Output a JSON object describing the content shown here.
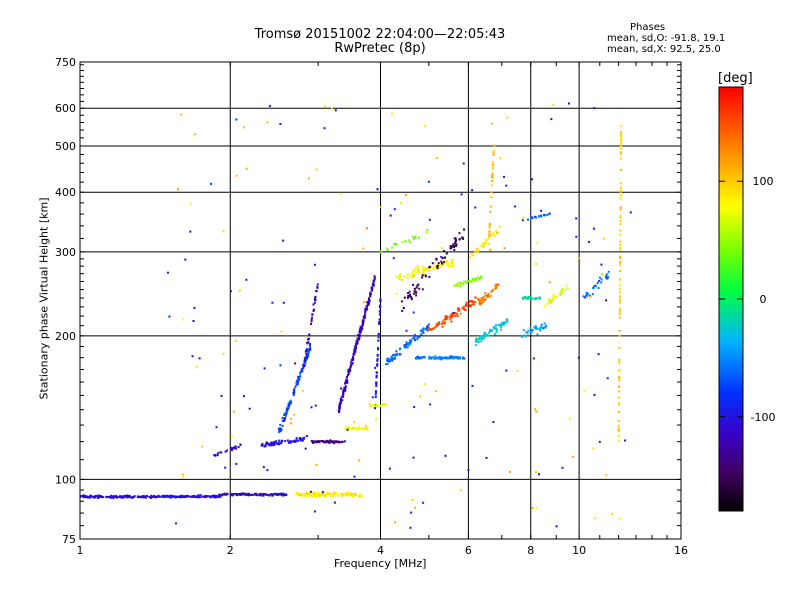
{
  "header": {
    "title_line1": "Tromsø 20151002 22:04:00—22:05:43",
    "title_line2": "RwPretec (8p)"
  },
  "phases_box": {
    "heading": "Phases",
    "line_o": "mean, sd,O: -91.8, 19.1",
    "line_x": "mean, sd,X:  92.5, 25.0"
  },
  "colors": {
    "grid": "#000000",
    "frame": "#000000"
  },
  "chart_data": {
    "type": "scatter",
    "title": "Tromsø 20151002 22:04:00—22:05:43",
    "subtitle": "RwPretec (8p)",
    "xlabel": "Frequency [MHz]",
    "ylabel": "Stationary phase Virtual Height [km]",
    "x_scale": "log",
    "y_scale": "log",
    "xlim": [
      1,
      16
    ],
    "ylim": [
      75,
      750
    ],
    "x_ticks": [
      1,
      2,
      4,
      6,
      8,
      10,
      16
    ],
    "x_grid": [
      2,
      4,
      6,
      8,
      10
    ],
    "y_ticks": [
      75,
      100,
      200,
      300,
      400,
      500,
      600,
      750
    ],
    "y_grid": [
      100,
      200,
      300,
      400,
      500,
      600
    ],
    "grid": true,
    "colorbar": {
      "label": "[deg]",
      "range": [
        -180,
        180
      ],
      "ticks": [
        100,
        0,
        -100
      ],
      "colormap": "rainbow (black-purple-blue-cyan-green-yellow-red)"
    },
    "series": [
      {
        "x0": 1.0,
        "x1": 1.92,
        "y0": 92,
        "y1": 92,
        "n": 260,
        "jitter": 0.008,
        "phase": -105
      },
      {
        "x0": 1.9,
        "x1": 2.6,
        "y0": 93,
        "y1": 93,
        "n": 130,
        "jitter": 0.008,
        "phase": -108
      },
      {
        "x0": 2.7,
        "x1": 3.7,
        "y0": 93,
        "y1": 93,
        "n": 120,
        "jitter": 0.015,
        "phase": 85
      },
      {
        "x0": 1.85,
        "x1": 2.1,
        "y0": 112,
        "y1": 118,
        "n": 25,
        "jitter": 0.01,
        "phase": -110
      },
      {
        "x0": 2.3,
        "x1": 2.9,
        "y0": 118,
        "y1": 122,
        "n": 70,
        "jitter": 0.015,
        "phase": -100
      },
      {
        "x0": 2.9,
        "x1": 3.4,
        "y0": 120,
        "y1": 120,
        "n": 60,
        "jitter": 0.008,
        "phase": -140
      },
      {
        "x0": 2.5,
        "x1": 2.9,
        "y0": 125,
        "y1": 190,
        "n": 110,
        "jitter": 0.03,
        "phase": -75
      },
      {
        "x0": 2.8,
        "x1": 3.0,
        "y0": 170,
        "y1": 260,
        "n": 40,
        "jitter": 0.03,
        "phase": -115
      },
      {
        "x0": 3.3,
        "x1": 3.9,
        "y0": 140,
        "y1": 265,
        "n": 200,
        "jitter": 0.03,
        "phase": -120
      },
      {
        "x0": 3.4,
        "x1": 3.8,
        "y0": 128,
        "y1": 128,
        "n": 30,
        "jitter": 0.01,
        "phase": 80
      },
      {
        "x0": 3.9,
        "x1": 4.0,
        "y0": 140,
        "y1": 240,
        "n": 50,
        "jitter": 0.03,
        "phase": -95
      },
      {
        "x0": 3.8,
        "x1": 4.1,
        "y0": 143,
        "y1": 143,
        "n": 20,
        "jitter": 0.01,
        "phase": 75
      },
      {
        "x0": 4.1,
        "x1": 5.0,
        "y0": 175,
        "y1": 210,
        "n": 80,
        "jitter": 0.03,
        "phase": -60
      },
      {
        "x0": 4.7,
        "x1": 5.9,
        "y0": 180,
        "y1": 180,
        "n": 90,
        "jitter": 0.01,
        "phase": -55
      },
      {
        "x0": 4.3,
        "x1": 5.6,
        "y0": 265,
        "y1": 285,
        "n": 90,
        "jitter": 0.03,
        "phase": 80
      },
      {
        "x0": 4.4,
        "x1": 5.9,
        "y0": 230,
        "y1": 330,
        "n": 70,
        "jitter": 0.05,
        "phase": -150
      },
      {
        "x0": 5.0,
        "x1": 6.3,
        "y0": 205,
        "y1": 240,
        "n": 80,
        "jitter": 0.03,
        "phase": 150
      },
      {
        "x0": 5.6,
        "x1": 6.4,
        "y0": 255,
        "y1": 265,
        "n": 40,
        "jitter": 0.015,
        "phase": 45
      },
      {
        "x0": 6.3,
        "x1": 6.9,
        "y0": 235,
        "y1": 255,
        "n": 40,
        "jitter": 0.025,
        "phase": 130
      },
      {
        "x0": 6.2,
        "x1": 7.2,
        "y0": 195,
        "y1": 215,
        "n": 60,
        "jitter": 0.03,
        "phase": -25
      },
      {
        "x0": 6.0,
        "x1": 7.0,
        "y0": 290,
        "y1": 340,
        "n": 30,
        "jitter": 0.03,
        "phase": 90
      },
      {
        "x0": 7.7,
        "x1": 8.4,
        "y0": 240,
        "y1": 240,
        "n": 30,
        "jitter": 0.01,
        "phase": -15
      },
      {
        "x0": 7.5,
        "x1": 8.6,
        "y0": 200,
        "y1": 210,
        "n": 30,
        "jitter": 0.03,
        "phase": -40
      },
      {
        "x0": 8.5,
        "x1": 9.5,
        "y0": 230,
        "y1": 255,
        "n": 30,
        "jitter": 0.025,
        "phase": 70
      },
      {
        "x0": 10.2,
        "x1": 11.5,
        "y0": 240,
        "y1": 270,
        "n": 30,
        "jitter": 0.03,
        "phase": -60
      },
      {
        "x0": 7.7,
        "x1": 8.8,
        "y0": 350,
        "y1": 360,
        "n": 20,
        "jitter": 0.01,
        "phase": -65
      },
      {
        "x0": 12.0,
        "x1": 12.15,
        "y0": 120,
        "y1": 560,
        "n": 90,
        "jitter": 0.01,
        "phase": 100
      },
      {
        "x0": 6.6,
        "x1": 6.75,
        "y0": 320,
        "y1": 500,
        "n": 30,
        "jitter": 0.02,
        "phase": 105
      },
      {
        "x0": 4.0,
        "x1": 5.0,
        "y0": 300,
        "y1": 330,
        "n": 20,
        "jitter": 0.02,
        "phase": 40
      }
    ],
    "scatter_noise": {
      "n": 180,
      "x": [
        1.5,
        13
      ],
      "y": [
        78,
        620
      ]
    }
  }
}
